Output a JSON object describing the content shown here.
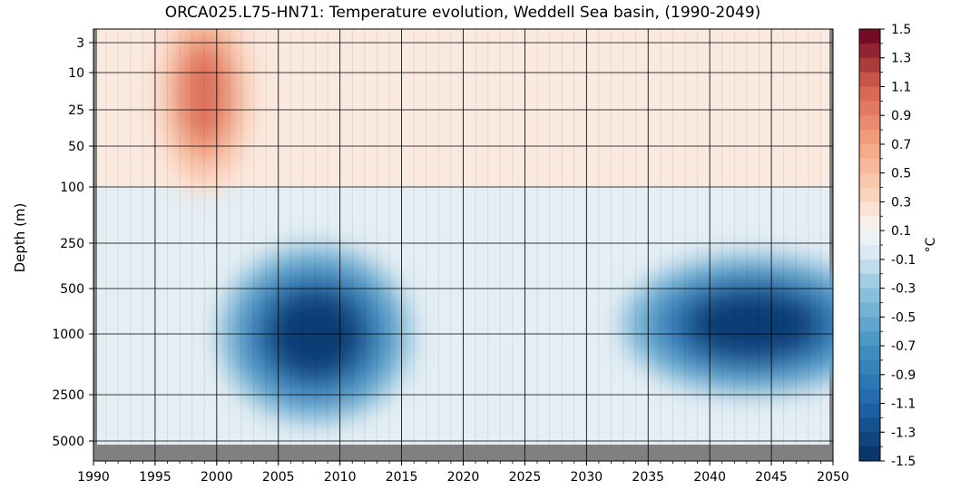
{
  "chart_data": {
    "type": "heatmap",
    "title": "ORCA025.L75-HN71: Temperature evolution, Weddell Sea basin, (1990-2049)",
    "xlabel": "",
    "ylabel": "Depth (m)",
    "x_ticks": [
      "1990",
      "1995",
      "2000",
      "2005",
      "2010",
      "2015",
      "2020",
      "2025",
      "2030",
      "2035",
      "2040",
      "2045",
      "2050"
    ],
    "xlim": [
      1990,
      2050
    ],
    "y_ticks": [
      "3",
      "10",
      "25",
      "50",
      "100",
      "250",
      "500",
      "1000",
      "2500",
      "5000"
    ],
    "y_scale": "log",
    "grid": true,
    "colorbar": {
      "label": "°C",
      "range": [
        -1.5,
        1.5
      ],
      "ticks": [
        "1.5",
        "1.3",
        "1.1",
        "0.9",
        "0.7",
        "0.5",
        "0.3",
        "0.1",
        "-0.1",
        "-0.3",
        "-0.5",
        "-0.7",
        "-0.9",
        "-1.1",
        "-1.3",
        "-1.5"
      ],
      "colormap": "RdBu_r",
      "colors": {
        "-1.5": "#053061",
        "-1.1": "#2166ac",
        "-0.7": "#4393c3",
        "-0.3": "#92c5de",
        "-0.1": "#d1e5f0",
        "0.1": "#f7f7f7",
        "0.3": "#fddbc7",
        "0.7": "#f4a582",
        "1.1": "#d6604d",
        "1.5": "#67001f"
      }
    },
    "features": [
      {
        "type": "warm-anomaly",
        "years": [
          1997,
          2001
        ],
        "depth_m": [
          3,
          50
        ],
        "peak_c": 1.0
      },
      {
        "type": "cold-anomaly",
        "years": [
          2004,
          2012
        ],
        "depth_m": [
          500,
          2000
        ],
        "peak_c": -1.4
      },
      {
        "type": "cold-anomaly",
        "years": [
          2038,
          2049
        ],
        "depth_m": [
          500,
          1500
        ],
        "peak_c": -1.4
      }
    ],
    "mask_color": "#808080"
  }
}
